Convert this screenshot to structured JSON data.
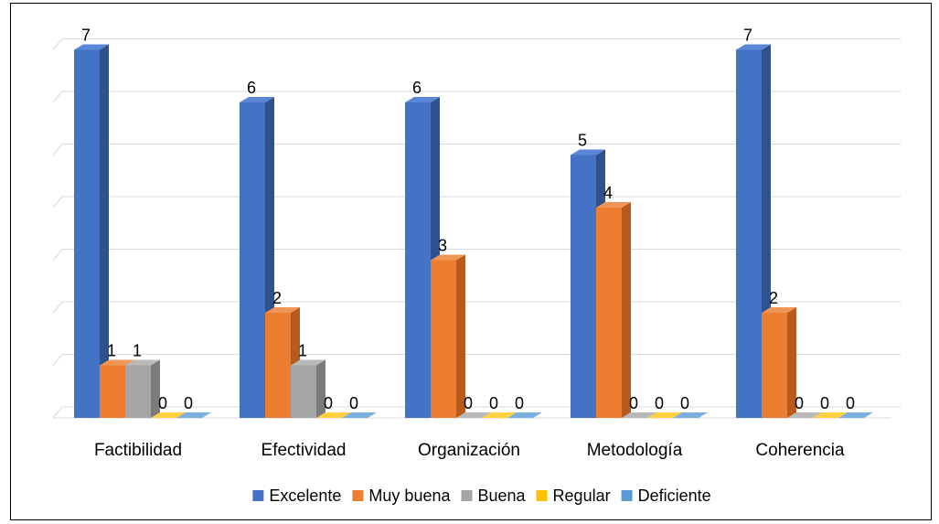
{
  "chart_data": {
    "type": "bar",
    "title": "",
    "xlabel": "",
    "ylabel": "",
    "categories": [
      "Factibilidad",
      "Efectividad",
      "Organización",
      "Metodología",
      "Coherencia"
    ],
    "series": [
      {
        "name": "Excelente",
        "values": [
          7,
          6,
          6,
          5,
          7
        ],
        "color": "#4472C4",
        "side_color": "#2F528F",
        "top_color": "#5B86D6"
      },
      {
        "name": "Muy buena",
        "values": [
          1,
          2,
          3,
          4,
          2
        ],
        "color": "#ED7D31",
        "side_color": "#B85A1C",
        "top_color": "#F09555"
      },
      {
        "name": "Buena",
        "values": [
          1,
          1,
          0,
          0,
          0
        ],
        "color": "#A5A5A5",
        "side_color": "#7B7B7B",
        "top_color": "#B9B9B9"
      },
      {
        "name": "Regular",
        "values": [
          0,
          0,
          0,
          0,
          0
        ],
        "color": "#FFC000",
        "side_color": "#BF9000",
        "top_color": "#FFD040"
      },
      {
        "name": "Deficiente",
        "values": [
          0,
          0,
          0,
          0,
          0
        ],
        "color": "#5B9BD5",
        "side_color": "#3F77A8",
        "top_color": "#7AAFE0"
      }
    ],
    "ylim": [
      0,
      7
    ],
    "grid": true,
    "legend": "bottom",
    "data_labels": true,
    "projection": "3d-column"
  }
}
